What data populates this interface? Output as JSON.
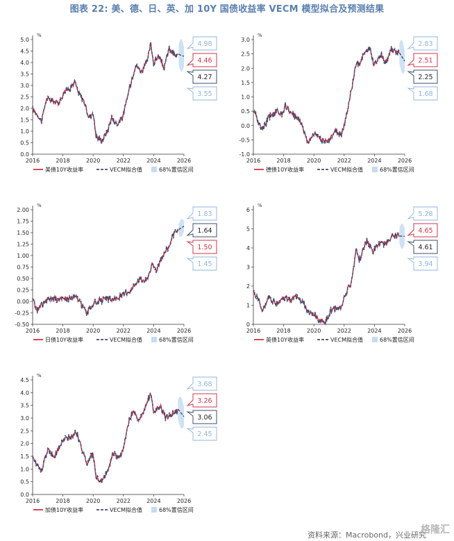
{
  "title": "图表 22: 美、德、日、英、加 10Y 国债收益率 VECM 模型拟合及预测结果",
  "source": "资料来源：Macrobond，兴业研究",
  "watermark": "格隆汇",
  "colors": {
    "actual": "#d0344a",
    "fitted": "#3d4d6e",
    "band": "#c7dcf2",
    "callout_ci": "#8fb3dc"
  },
  "chart_data": [
    {
      "type": "line",
      "country": "us",
      "unit": "%",
      "ylim": [
        0,
        5
      ],
      "yticks": [
        "0.0",
        "0.5",
        "1.0",
        "1.5",
        "2.0",
        "2.5",
        "3.0",
        "3.5",
        "4.0",
        "4.5",
        "5.0"
      ],
      "xticks": [
        "2016",
        "2018",
        "2020",
        "2022",
        "2024",
        "2026"
      ],
      "xlim": [
        2016,
        2026
      ],
      "legend": [
        "美债10Y收益率",
        "VECM拟合值",
        "68%置信区间"
      ],
      "anchors": [
        [
          2016.0,
          1.95
        ],
        [
          2016.3,
          1.75
        ],
        [
          2016.6,
          1.45
        ],
        [
          2016.9,
          2.4
        ],
        [
          2017.3,
          2.35
        ],
        [
          2017.7,
          2.2
        ],
        [
          2018.1,
          2.75
        ],
        [
          2018.5,
          2.9
        ],
        [
          2018.8,
          3.15
        ],
        [
          2019.0,
          2.7
        ],
        [
          2019.4,
          2.3
        ],
        [
          2019.7,
          1.6
        ],
        [
          2020.0,
          1.8
        ],
        [
          2020.2,
          0.75
        ],
        [
          2020.6,
          0.6
        ],
        [
          2021.0,
          1.1
        ],
        [
          2021.2,
          1.6
        ],
        [
          2021.6,
          1.3
        ],
        [
          2022.0,
          1.7
        ],
        [
          2022.4,
          2.9
        ],
        [
          2022.8,
          3.9
        ],
        [
          2023.2,
          3.6
        ],
        [
          2023.6,
          4.1
        ],
        [
          2023.8,
          4.85
        ],
        [
          2024.0,
          3.95
        ],
        [
          2024.3,
          4.3
        ],
        [
          2024.7,
          3.75
        ],
        [
          2025.0,
          4.6
        ],
        [
          2025.5,
          4.25
        ],
        [
          2025.65,
          4.35
        ]
      ],
      "forecast": {
        "start": 2025.65,
        "end": 2026.0,
        "mean": 4.27,
        "upper": 4.98,
        "lower": 3.55
      },
      "callouts": [
        {
          "label": "4.98",
          "kind": "upper"
        },
        {
          "label": "4.46",
          "kind": "actual"
        },
        {
          "label": "4.27",
          "kind": "fitted"
        },
        {
          "label": "3.55",
          "kind": "lower"
        }
      ]
    },
    {
      "type": "line",
      "country": "de",
      "unit": "%",
      "ylim": [
        -1.0,
        3.0
      ],
      "yticks": [
        "-1.0",
        "-0.5",
        "0.0",
        "0.5",
        "1.0",
        "1.5",
        "2.0",
        "2.5",
        "3.0"
      ],
      "xticks": [
        "2016",
        "2018",
        "2020",
        "2022",
        "2024",
        "2026"
      ],
      "xlim": [
        2016,
        2026
      ],
      "legend": [
        "德债10Y收益率",
        "VECM拟合值",
        "68%置信区间"
      ],
      "anchors": [
        [
          2016.0,
          0.55
        ],
        [
          2016.5,
          -0.1
        ],
        [
          2016.8,
          0.0
        ],
        [
          2017.0,
          0.3
        ],
        [
          2017.5,
          0.5
        ],
        [
          2017.9,
          0.4
        ],
        [
          2018.1,
          0.7
        ],
        [
          2018.5,
          0.4
        ],
        [
          2018.9,
          0.3
        ],
        [
          2019.2,
          0.05
        ],
        [
          2019.6,
          -0.6
        ],
        [
          2020.0,
          -0.25
        ],
        [
          2020.3,
          -0.45
        ],
        [
          2020.7,
          -0.55
        ],
        [
          2021.0,
          -0.5
        ],
        [
          2021.4,
          -0.2
        ],
        [
          2021.8,
          -0.3
        ],
        [
          2022.0,
          0.0
        ],
        [
          2022.4,
          1.0
        ],
        [
          2022.8,
          2.2
        ],
        [
          2023.0,
          2.1
        ],
        [
          2023.3,
          2.5
        ],
        [
          2023.7,
          2.7
        ],
        [
          2024.0,
          2.1
        ],
        [
          2024.4,
          2.5
        ],
        [
          2024.8,
          2.2
        ],
        [
          2025.1,
          2.7
        ],
        [
          2025.4,
          2.55
        ],
        [
          2025.65,
          2.6
        ]
      ],
      "forecast": {
        "start": 2025.65,
        "end": 2026.0,
        "mean": 2.25,
        "upper": 2.83,
        "lower": 1.68
      },
      "callouts": [
        {
          "label": "2.83",
          "kind": "upper"
        },
        {
          "label": "2.51",
          "kind": "actual"
        },
        {
          "label": "2.25",
          "kind": "fitted"
        },
        {
          "label": "1.68",
          "kind": "lower"
        }
      ]
    },
    {
      "type": "line",
      "country": "jp",
      "unit": "%",
      "ylim": [
        -0.5,
        2.0
      ],
      "yticks": [
        "-0.50",
        "-0.25",
        "0.00",
        "0.25",
        "0.50",
        "0.75",
        "1.00",
        "1.25",
        "1.50",
        "1.75",
        "2.00"
      ],
      "xticks": [
        "2016",
        "2018",
        "2020",
        "2022",
        "2024",
        "2026"
      ],
      "xlim": [
        2016,
        2026
      ],
      "legend": [
        "日债10Y收益率",
        "VECM拟合值",
        "68%置信区间"
      ],
      "anchors": [
        [
          2016.0,
          0.05
        ],
        [
          2016.3,
          -0.2
        ],
        [
          2016.7,
          -0.05
        ],
        [
          2017.0,
          0.05
        ],
        [
          2017.5,
          0.07
        ],
        [
          2018.0,
          0.05
        ],
        [
          2018.5,
          0.07
        ],
        [
          2018.9,
          0.1
        ],
        [
          2019.2,
          -0.05
        ],
        [
          2019.6,
          -0.25
        ],
        [
          2020.0,
          -0.05
        ],
        [
          2020.5,
          0.02
        ],
        [
          2021.0,
          0.05
        ],
        [
          2021.5,
          0.05
        ],
        [
          2022.0,
          0.15
        ],
        [
          2022.5,
          0.25
        ],
        [
          2023.0,
          0.5
        ],
        [
          2023.5,
          0.45
        ],
        [
          2023.9,
          0.8
        ],
        [
          2024.2,
          0.7
        ],
        [
          2024.6,
          1.0
        ],
        [
          2025.0,
          1.2
        ],
        [
          2025.3,
          1.45
        ],
        [
          2025.65,
          1.55
        ]
      ],
      "forecast": {
        "start": 2025.65,
        "end": 2026.0,
        "mean": 1.64,
        "upper": 1.83,
        "lower": 1.45
      },
      "callouts": [
        {
          "label": "1.83",
          "kind": "upper"
        },
        {
          "label": "1.64",
          "kind": "fitted"
        },
        {
          "label": "1.50",
          "kind": "actual"
        },
        {
          "label": "1.45",
          "kind": "lower"
        }
      ]
    },
    {
      "type": "line",
      "country": "uk",
      "unit": "%",
      "ylim": [
        0,
        6
      ],
      "yticks": [
        "0",
        "1",
        "2",
        "3",
        "4",
        "5",
        "6"
      ],
      "xticks": [
        "2016",
        "2018",
        "2020",
        "2022",
        "2024",
        "2026"
      ],
      "xlim": [
        2016,
        2026
      ],
      "legend": [
        "英债10Y收益率",
        "VECM拟合值",
        "68%置信区间"
      ],
      "anchors": [
        [
          2016.0,
          1.7
        ],
        [
          2016.4,
          1.2
        ],
        [
          2016.6,
          0.65
        ],
        [
          2017.0,
          1.4
        ],
        [
          2017.5,
          1.1
        ],
        [
          2018.0,
          1.4
        ],
        [
          2018.5,
          1.3
        ],
        [
          2018.9,
          1.5
        ],
        [
          2019.3,
          1.1
        ],
        [
          2019.7,
          0.5
        ],
        [
          2020.0,
          0.6
        ],
        [
          2020.3,
          0.2
        ],
        [
          2020.8,
          0.15
        ],
        [
          2021.1,
          0.7
        ],
        [
          2021.4,
          0.8
        ],
        [
          2021.8,
          0.9
        ],
        [
          2022.0,
          1.4
        ],
        [
          2022.5,
          2.3
        ],
        [
          2022.8,
          4.0
        ],
        [
          2023.0,
          3.4
        ],
        [
          2023.5,
          4.4
        ],
        [
          2023.9,
          3.8
        ],
        [
          2024.3,
          4.2
        ],
        [
          2024.8,
          4.25
        ],
        [
          2025.1,
          4.6
        ],
        [
          2025.5,
          4.6
        ],
        [
          2025.65,
          4.7
        ]
      ],
      "forecast": {
        "start": 2025.65,
        "end": 2026.0,
        "mean": 4.61,
        "upper": 5.28,
        "lower": 3.94
      },
      "callouts": [
        {
          "label": "5.28",
          "kind": "upper"
        },
        {
          "label": "4.65",
          "kind": "actual"
        },
        {
          "label": "4.61",
          "kind": "fitted"
        },
        {
          "label": "3.94",
          "kind": "lower"
        }
      ]
    },
    {
      "type": "line",
      "country": "ca",
      "unit": "%",
      "ylim": [
        0,
        4.5
      ],
      "yticks": [
        "0.0",
        "0.5",
        "1.0",
        "1.5",
        "2.0",
        "2.5",
        "3.0",
        "3.5",
        "4.0",
        "4.5"
      ],
      "xticks": [
        "2016",
        "2018",
        "2020",
        "2022",
        "2024",
        "2026"
      ],
      "xlim": [
        2016,
        2026
      ],
      "legend": [
        "加债10Y收益率",
        "VECM拟合值",
        "68%置信区间"
      ],
      "anchors": [
        [
          2016.0,
          1.4
        ],
        [
          2016.3,
          1.2
        ],
        [
          2016.6,
          0.95
        ],
        [
          2017.0,
          1.75
        ],
        [
          2017.4,
          1.5
        ],
        [
          2017.8,
          1.9
        ],
        [
          2018.1,
          2.2
        ],
        [
          2018.5,
          2.25
        ],
        [
          2018.9,
          2.45
        ],
        [
          2019.2,
          1.9
        ],
        [
          2019.6,
          1.2
        ],
        [
          2020.0,
          1.6
        ],
        [
          2020.2,
          0.6
        ],
        [
          2020.6,
          0.55
        ],
        [
          2021.0,
          1.0
        ],
        [
          2021.3,
          1.55
        ],
        [
          2021.8,
          1.5
        ],
        [
          2022.0,
          1.8
        ],
        [
          2022.4,
          3.0
        ],
        [
          2022.7,
          3.3
        ],
        [
          2023.0,
          2.9
        ],
        [
          2023.5,
          3.5
        ],
        [
          2023.8,
          4.0
        ],
        [
          2024.0,
          3.2
        ],
        [
          2024.4,
          3.5
        ],
        [
          2024.8,
          3.0
        ],
        [
          2025.1,
          3.1
        ],
        [
          2025.4,
          3.3
        ],
        [
          2025.6,
          3.25
        ]
      ],
      "forecast": {
        "start": 2025.6,
        "end": 2026.0,
        "mean": 3.06,
        "upper": 3.68,
        "lower": 2.45
      },
      "callouts": [
        {
          "label": "3.68",
          "kind": "upper"
        },
        {
          "label": "3.26",
          "kind": "actual"
        },
        {
          "label": "3.06",
          "kind": "fitted"
        },
        {
          "label": "2.45",
          "kind": "lower"
        }
      ]
    }
  ]
}
